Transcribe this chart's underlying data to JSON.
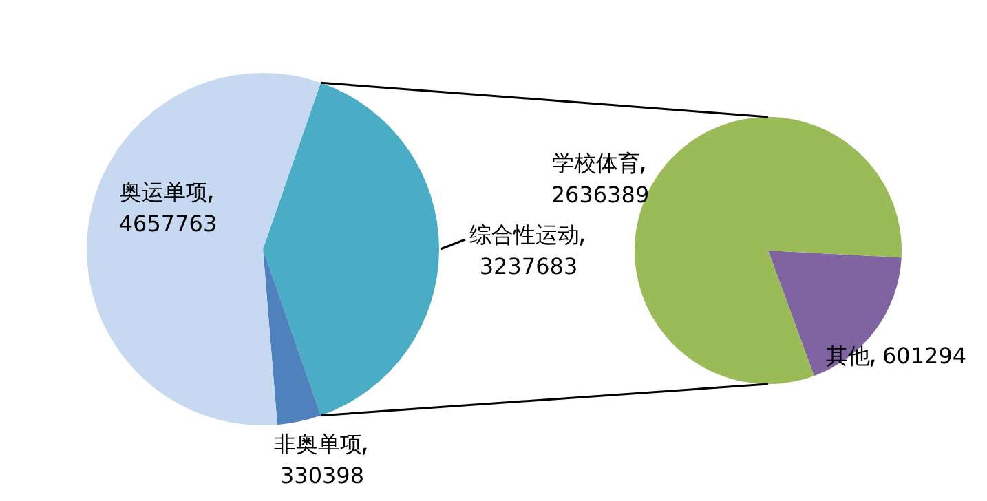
{
  "chart_data": [
    {
      "type": "pie",
      "categories": [
        "综合性运动",
        "非奥单项",
        "奥运单项"
      ],
      "values": [
        3237683,
        330398,
        4657763
      ],
      "colors": [
        "#4bacc6",
        "#4f81bd",
        "#c6d9f1"
      ],
      "data_labels": true
    },
    {
      "type": "pie",
      "categories": [
        "其他",
        "学校体育"
      ],
      "values": [
        601294,
        2636389
      ],
      "colors": [
        "#8064a2",
        "#9bbb59"
      ],
      "data_labels": true
    }
  ]
}
